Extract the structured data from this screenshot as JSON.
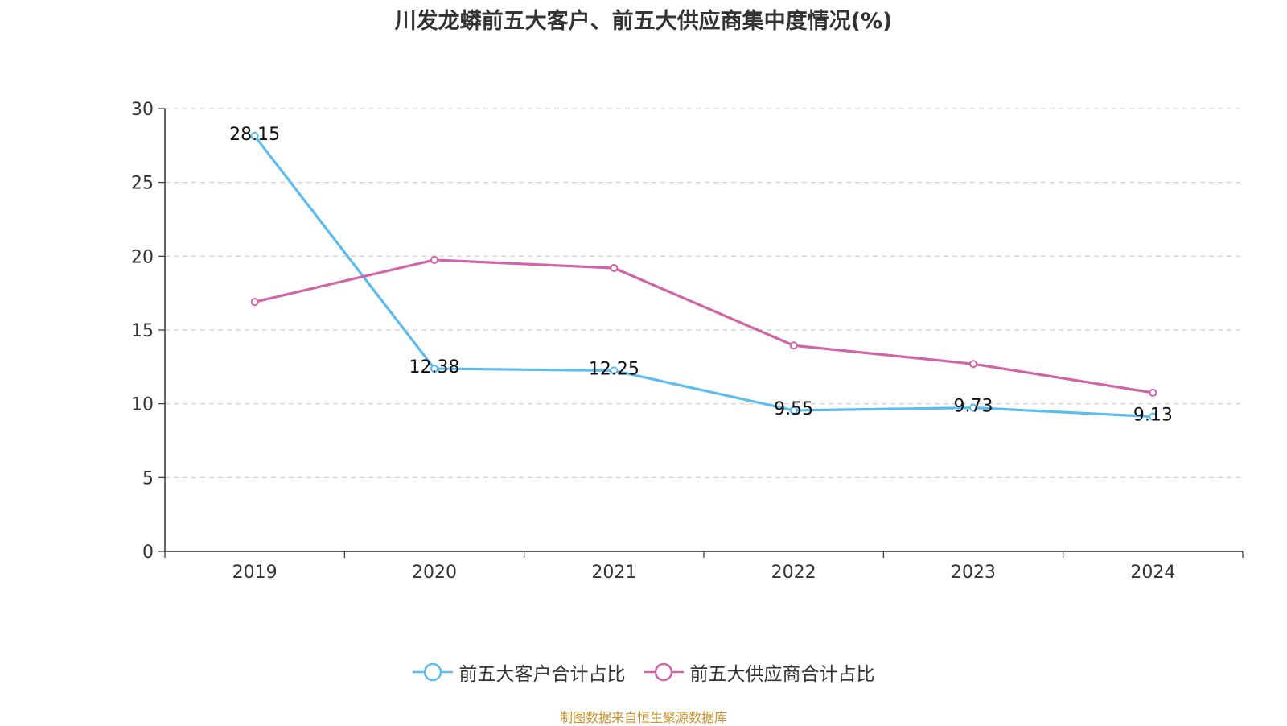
{
  "chart_data": {
    "type": "line",
    "title": "川发龙蟒前五大客户、前五大供应商集中度情况(%)",
    "categories": [
      "2019",
      "2020",
      "2021",
      "2022",
      "2023",
      "2024"
    ],
    "series": [
      {
        "name": "前五大客户合计占比",
        "color": "#5bbcf0",
        "values": [
          28.15,
          12.38,
          12.25,
          9.55,
          9.73,
          9.13
        ],
        "labels": [
          "28.15",
          "12.38",
          "12.25",
          "9.55",
          "9.73",
          "9.13"
        ],
        "show_labels": true
      },
      {
        "name": "前五大供应商合计占比",
        "color": "#d164a8",
        "values": [
          16.9,
          19.75,
          19.2,
          13.95,
          12.7,
          10.75
        ],
        "show_labels": false
      }
    ],
    "ylim": [
      0,
      30
    ],
    "yticks": [
      0,
      5,
      10,
      15,
      20,
      25,
      30
    ],
    "xlabel": "",
    "ylabel": "",
    "grid": true,
    "legend_position": "bottom"
  },
  "source_note": "制图数据来自恒生聚源数据库"
}
